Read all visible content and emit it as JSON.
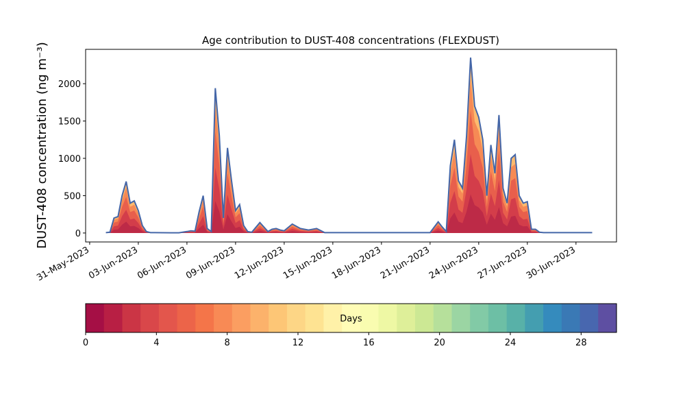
{
  "chart_data": [
    {
      "type": "area",
      "title": "Age contribution to DUST-408 concentrations (FLEXDUST)",
      "ylabel": "DUST-408 concentration (ng m⁻³)",
      "xlabel": "",
      "ylim": [
        -120,
        2460
      ],
      "xlim": [
        "2023-05-30T18:00",
        "2023-07-02T12:00"
      ],
      "x_ticks": [
        "31-May-2023",
        "03-Jun-2023",
        "06-Jun-2023",
        "09-Jun-2023",
        "12-Jun-2023",
        "15-Jun-2023",
        "18-Jun-2023",
        "21-Jun-2023",
        "24-Jun-2023",
        "27-Jun-2023",
        "30-Jun-2023"
      ],
      "y_ticks": [
        "0",
        "500",
        "1000",
        "1500",
        "2000"
      ],
      "grid": false,
      "stacked_by": "particle age (days)",
      "total_series": {
        "x": [
          "2023-06-01T00:00",
          "2023-06-01T06:00",
          "2023-06-01T12:00",
          "2023-06-01T18:00",
          "2023-06-02T00:00",
          "2023-06-02T06:00",
          "2023-06-02T12:00",
          "2023-06-02T18:00",
          "2023-06-03T00:00",
          "2023-06-03T06:00",
          "2023-06-03T12:00",
          "2023-06-03T18:00",
          "2023-06-04T00:00",
          "2023-06-05T00:00",
          "2023-06-05T12:00",
          "2023-06-06T00:00",
          "2023-06-06T06:00",
          "2023-06-06T12:00",
          "2023-06-06T18:00",
          "2023-06-07T00:00",
          "2023-06-07T06:00",
          "2023-06-07T12:00",
          "2023-06-07T18:00",
          "2023-06-08T00:00",
          "2023-06-08T06:00",
          "2023-06-08T12:00",
          "2023-06-08T18:00",
          "2023-06-09T00:00",
          "2023-06-09T06:00",
          "2023-06-09T12:00",
          "2023-06-09T18:00",
          "2023-06-10T00:00",
          "2023-06-10T12:00",
          "2023-06-11T00:00",
          "2023-06-11T06:00",
          "2023-06-11T12:00",
          "2023-06-11T18:00",
          "2023-06-12T00:00",
          "2023-06-12T12:00",
          "2023-06-13T00:00",
          "2023-06-13T12:00",
          "2023-06-14T00:00",
          "2023-06-14T12:00",
          "2023-06-15T00:00",
          "2023-06-15T12:00",
          "2023-06-16T00:00",
          "2023-06-17T00:00",
          "2023-06-18T00:00",
          "2023-06-19T00:00",
          "2023-06-20T00:00",
          "2023-06-21T00:00",
          "2023-06-21T12:00",
          "2023-06-21T18:00",
          "2023-06-22T00:00",
          "2023-06-22T06:00",
          "2023-06-22T12:00",
          "2023-06-22T18:00",
          "2023-06-23T00:00",
          "2023-06-23T06:00",
          "2023-06-23T12:00",
          "2023-06-23T18:00",
          "2023-06-24T00:00",
          "2023-06-24T06:00",
          "2023-06-24T12:00",
          "2023-06-24T18:00",
          "2023-06-25T00:00",
          "2023-06-25T06:00",
          "2023-06-25T12:00",
          "2023-06-25T18:00",
          "2023-06-26T00:00",
          "2023-06-26T06:00",
          "2023-06-26T12:00",
          "2023-06-26T18:00",
          "2023-06-27T00:00",
          "2023-06-27T06:00",
          "2023-06-27T12:00",
          "2023-06-27T18:00",
          "2023-06-28T00:00",
          "2023-06-29T00:00",
          "2023-06-30T00:00",
          "2023-06-30T12:00",
          "2023-07-01T00:00"
        ],
        "values": [
          5,
          10,
          200,
          220,
          500,
          690,
          400,
          430,
          300,
          100,
          20,
          5,
          5,
          3,
          3,
          20,
          30,
          25,
          280,
          500,
          60,
          20,
          1940,
          1300,
          200,
          1140,
          700,
          300,
          380,
          100,
          20,
          10,
          140,
          20,
          50,
          60,
          40,
          30,
          120,
          60,
          40,
          60,
          5,
          5,
          5,
          5,
          5,
          5,
          5,
          5,
          5,
          150,
          80,
          20,
          900,
          1250,
          700,
          600,
          1300,
          2350,
          1700,
          1550,
          1250,
          500,
          1180,
          800,
          1580,
          600,
          400,
          1000,
          1050,
          500,
          400,
          420,
          50,
          50,
          10,
          5,
          5,
          5,
          5,
          5
        ]
      },
      "colorbar": {
        "label": "Days",
        "min": 0,
        "max": 30,
        "ticks": [
          "0",
          "4",
          "8",
          "12",
          "16",
          "20",
          "24",
          "28"
        ],
        "colors": [
          "#a50f45",
          "#b81f44",
          "#cb3545",
          "#d9474a",
          "#e3564c",
          "#ec6449",
          "#f47549",
          "#f88a55",
          "#fb9e61",
          "#fcb26b",
          "#fdc676",
          "#fdd686",
          "#fee392",
          "#fff1a8",
          "#fffcb6",
          "#f9fcb0",
          "#eef8a4",
          "#deef99",
          "#cce894",
          "#b6e09b",
          "#9bd5a3",
          "#82caa6",
          "#6dbfa5",
          "#58b1a8",
          "#449eb0",
          "#358bbd",
          "#3a79b5",
          "#4867af",
          "#5e4fa2"
        ]
      }
    }
  ]
}
